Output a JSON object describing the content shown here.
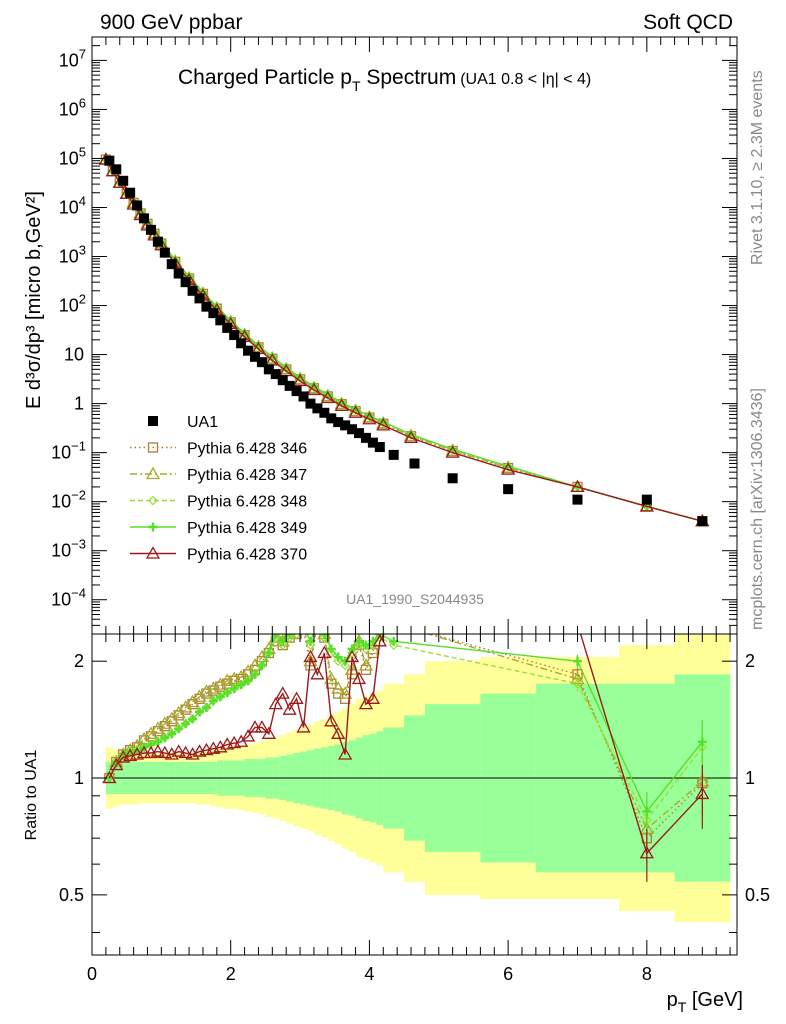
{
  "header": {
    "left": "900 GeV ppbar",
    "right": "Soft QCD"
  },
  "side_text": {
    "rivet": "Rivet 3.1.10, ≥ 2.3M events",
    "url": "mcplots.cern.ch [arXiv:1306.3436]"
  },
  "analysis_id": "UA1_1990_S2044935",
  "chart_data": [
    {
      "type": "scatter",
      "panel": "main",
      "title": {
        "main": "Charged Particle p",
        "sub": "T",
        "rest": " Spectrum",
        "cut": "(UA1 0.8 < |η| < 4)"
      },
      "ylabel": "E d³σ/dp³ [micro b,GeV²]",
      "yscale": "log",
      "xlim": [
        0,
        9.3
      ],
      "ylim": [
        2e-05,
        30000000.0
      ],
      "ytick_labels": [
        {
          "v": 10000000.0,
          "base": "10",
          "exp": "7"
        },
        {
          "v": 1000000.0,
          "base": "10",
          "exp": "6"
        },
        {
          "v": 100000.0,
          "base": "10",
          "exp": "5"
        },
        {
          "v": 10000.0,
          "base": "10",
          "exp": "4"
        },
        {
          "v": 1000.0,
          "base": "10",
          "exp": "3"
        },
        {
          "v": 100,
          "base": "10",
          "exp": "2"
        },
        {
          "v": 10,
          "base": "10",
          "exp": ""
        },
        {
          "v": 1,
          "base": "1",
          "exp": ""
        },
        {
          "v": 0.1,
          "base": "10",
          "exp": "−1"
        },
        {
          "v": 0.01,
          "base": "10",
          "exp": "−2"
        },
        {
          "v": 0.001,
          "base": "10",
          "exp": "−3"
        },
        {
          "v": 0.0001,
          "base": "10",
          "exp": "−4"
        }
      ],
      "data_series": {
        "name": "UA1",
        "x": [
          0.25,
          0.35,
          0.45,
          0.55,
          0.65,
          0.75,
          0.85,
          0.95,
          1.05,
          1.15,
          1.25,
          1.35,
          1.45,
          1.55,
          1.65,
          1.75,
          1.85,
          1.95,
          2.05,
          2.15,
          2.25,
          2.35,
          2.45,
          2.55,
          2.65,
          2.75,
          2.85,
          2.95,
          3.05,
          3.15,
          3.25,
          3.35,
          3.45,
          3.55,
          3.65,
          3.75,
          3.85,
          3.95,
          4.05,
          4.15,
          4.35,
          4.65,
          5.2,
          6.0,
          7.0,
          8.0,
          8.8
        ],
        "y": [
          90000,
          60000,
          35000,
          20000,
          11000,
          6000,
          3500,
          2000,
          1200,
          700,
          450,
          300,
          200,
          140,
          95,
          70,
          50,
          35,
          25,
          17,
          12,
          9,
          7,
          5,
          4,
          3,
          2.3,
          1.8,
          1.4,
          1.0,
          0.8,
          0.65,
          0.5,
          0.42,
          0.36,
          0.3,
          0.25,
          0.2,
          0.16,
          0.13,
          0.09,
          0.06,
          0.03,
          0.018,
          0.011,
          0.011,
          0.004
        ]
      },
      "mc_series": [
        {
          "name": "Pythia 6.428 346",
          "color": "#b07d3b",
          "dash": "1.5,3",
          "marker": "square"
        },
        {
          "name": "Pythia 6.428 347",
          "color": "#a8a82a",
          "dash": "7,3,2,3",
          "marker": "triangle"
        },
        {
          "name": "Pythia 6.428 348",
          "color": "#99e033",
          "dash": "5,3",
          "marker": "diamond"
        },
        {
          "name": "Pythia 6.428 349",
          "color": "#55e02a",
          "dash": "",
          "marker": "cross"
        },
        {
          "name": "Pythia 6.428 370",
          "color": "#9c1a1a",
          "dash": "",
          "marker": "triangle"
        }
      ],
      "mc_curve": {
        "x": [
          0.2,
          0.3,
          0.4,
          0.5,
          0.6,
          0.7,
          0.8,
          0.9,
          1.0,
          1.2,
          1.4,
          1.6,
          1.8,
          2.0,
          2.2,
          2.4,
          2.6,
          2.8,
          3.0,
          3.2,
          3.4,
          3.6,
          3.8,
          4.0,
          4.2,
          4.6,
          5.2,
          6.0,
          7.0,
          8.0,
          8.8
        ],
        "y": [
          95000,
          55000,
          32000,
          19000,
          11500,
          7000,
          4300,
          2700,
          1700,
          720,
          330,
          160,
          80,
          42,
          23,
          13,
          7.6,
          4.6,
          2.9,
          1.9,
          1.3,
          0.9,
          0.65,
          0.48,
          0.36,
          0.2,
          0.1,
          0.045,
          0.02,
          0.008,
          0.004
        ]
      }
    },
    {
      "type": "line",
      "panel": "ratio",
      "ylabel": "Ratio to UA1",
      "xlabel": {
        "main": "p",
        "sub": "T",
        "rest": " [GeV]"
      },
      "xlim": [
        0,
        9.3
      ],
      "ylim": [
        0.35,
        2.35
      ],
      "yscale": "log",
      "xticks": [
        0,
        2,
        4,
        6,
        8
      ],
      "yticks": [
        0.5,
        1,
        2
      ],
      "band_edges": [
        0.2,
        0.3,
        0.4,
        0.5,
        0.6,
        0.7,
        0.8,
        0.9,
        1.0,
        1.1,
        1.2,
        1.3,
        1.4,
        1.5,
        1.6,
        1.7,
        1.8,
        1.9,
        2.0,
        2.1,
        2.2,
        2.3,
        2.4,
        2.5,
        2.6,
        2.7,
        2.8,
        2.9,
        3.0,
        3.1,
        3.2,
        3.3,
        3.4,
        3.5,
        3.6,
        3.7,
        3.8,
        3.9,
        4.0,
        4.1,
        4.2,
        4.5,
        4.8,
        5.6,
        6.4,
        7.6,
        8.4,
        9.2
      ],
      "band_inner": [
        1.1,
        1.1,
        1.1,
        1.1,
        1.1,
        1.1,
        1.1,
        1.1,
        1.1,
        1.1,
        1.1,
        1.1,
        1.1,
        1.1,
        1.1,
        1.1,
        1.11,
        1.11,
        1.11,
        1.11,
        1.12,
        1.12,
        1.12,
        1.13,
        1.13,
        1.14,
        1.15,
        1.16,
        1.17,
        1.18,
        1.19,
        1.2,
        1.21,
        1.22,
        1.24,
        1.25,
        1.27,
        1.29,
        1.3,
        1.32,
        1.35,
        1.45,
        1.55,
        1.65,
        1.75,
        1.75,
        1.85
      ],
      "band_outer": [
        1.2,
        1.18,
        1.17,
        1.17,
        1.17,
        1.16,
        1.16,
        1.16,
        1.16,
        1.16,
        1.16,
        1.16,
        1.16,
        1.17,
        1.17,
        1.18,
        1.19,
        1.2,
        1.2,
        1.21,
        1.22,
        1.23,
        1.24,
        1.26,
        1.27,
        1.29,
        1.31,
        1.33,
        1.35,
        1.37,
        1.4,
        1.42,
        1.45,
        1.48,
        1.52,
        1.55,
        1.6,
        1.62,
        1.65,
        1.68,
        1.75,
        1.85,
        2.0,
        2.05,
        2.05,
        2.2,
        2.35
      ],
      "ratio_x": [
        0.25,
        0.35,
        0.45,
        0.55,
        0.65,
        0.75,
        0.85,
        0.95,
        1.05,
        1.15,
        1.25,
        1.35,
        1.45,
        1.55,
        1.65,
        1.75,
        1.85,
        1.95,
        2.05,
        2.15,
        2.25,
        2.35,
        2.45,
        2.55,
        2.65,
        2.75,
        2.85,
        2.95,
        3.05,
        3.15,
        3.25,
        3.35,
        3.45,
        3.55,
        3.65,
        3.75,
        3.85,
        3.95,
        4.05,
        4.15,
        4.35,
        7.0,
        8.0,
        8.8
      ],
      "ratio_series": [
        {
          "name": "346",
          "y": [
            1.0,
            1.1,
            1.15,
            1.18,
            1.2,
            1.25,
            1.28,
            1.32,
            1.36,
            1.4,
            1.45,
            1.5,
            1.55,
            1.6,
            1.65,
            1.68,
            1.72,
            1.75,
            1.78,
            1.8,
            1.85,
            1.9,
            2.0,
            2.1,
            2.25,
            2.2,
            2.3,
            2.35,
            2.4,
            1.95,
            2.5,
            2.3,
            1.75,
            1.65,
            1.6,
            1.85,
            2.2,
            1.9,
            2.1,
            2.5,
            2.5,
            1.85,
            0.7,
            0.97
          ]
        },
        {
          "name": "347",
          "y": [
            1.0,
            1.1,
            1.15,
            1.18,
            1.21,
            1.26,
            1.3,
            1.34,
            1.38,
            1.42,
            1.47,
            1.52,
            1.57,
            1.62,
            1.67,
            1.7,
            1.74,
            1.78,
            1.8,
            1.82,
            1.88,
            1.95,
            2.05,
            2.15,
            2.3,
            2.25,
            2.35,
            2.4,
            2.45,
            2.0,
            2.55,
            2.35,
            1.8,
            1.7,
            1.65,
            1.9,
            2.25,
            1.95,
            2.15,
            2.5,
            2.5,
            1.8,
            0.74,
            0.98
          ]
        },
        {
          "name": "348",
          "y": [
            1.0,
            1.1,
            1.15,
            1.17,
            1.18,
            1.2,
            1.22,
            1.24,
            1.27,
            1.3,
            1.34,
            1.38,
            1.42,
            1.48,
            1.52,
            1.58,
            1.62,
            1.66,
            1.7,
            1.74,
            1.78,
            1.85,
            1.95,
            2.1,
            2.3,
            2.2,
            2.3,
            2.35,
            2.4,
            2.2,
            2.45,
            2.3,
            2.1,
            2.0,
            1.95,
            2.1,
            2.2,
            2.15,
            2.2,
            2.3,
            2.2,
            1.75,
            0.78,
            1.2
          ]
        },
        {
          "name": "349",
          "y": [
            1.0,
            1.1,
            1.15,
            1.17,
            1.18,
            1.2,
            1.22,
            1.24,
            1.27,
            1.3,
            1.34,
            1.38,
            1.42,
            1.48,
            1.52,
            1.58,
            1.62,
            1.66,
            1.7,
            1.74,
            1.78,
            1.85,
            1.95,
            2.1,
            2.35,
            2.25,
            2.35,
            2.4,
            2.45,
            2.25,
            2.5,
            2.35,
            2.15,
            2.05,
            2.0,
            2.15,
            2.25,
            2.2,
            2.25,
            2.35,
            2.25,
            2.0,
            0.82,
            1.24
          ]
        },
        {
          "name": "370",
          "y": [
            1.0,
            1.08,
            1.13,
            1.14,
            1.15,
            1.16,
            1.16,
            1.17,
            1.16,
            1.15,
            1.17,
            1.16,
            1.15,
            1.17,
            1.18,
            1.19,
            1.2,
            1.22,
            1.23,
            1.24,
            1.28,
            1.35,
            1.35,
            1.3,
            1.55,
            1.65,
            1.5,
            1.6,
            1.35,
            2.05,
            1.85,
            2.1,
            1.4,
            1.3,
            1.15,
            2.05,
            1.8,
            1.55,
            1.6,
            2.25,
            2.6,
            2.5,
            0.64,
            0.91
          ]
        }
      ],
      "ratio_err": [
        {
          "x": 7.0,
          "hi": 0.08
        },
        {
          "x": 8.0,
          "hi": 0.1
        },
        {
          "x": 8.8,
          "hi": 0.17
        }
      ]
    }
  ],
  "colors": {
    "band_outer": "#ffff99",
    "band_inner": "#99ff99",
    "data_marker": "#000000"
  }
}
